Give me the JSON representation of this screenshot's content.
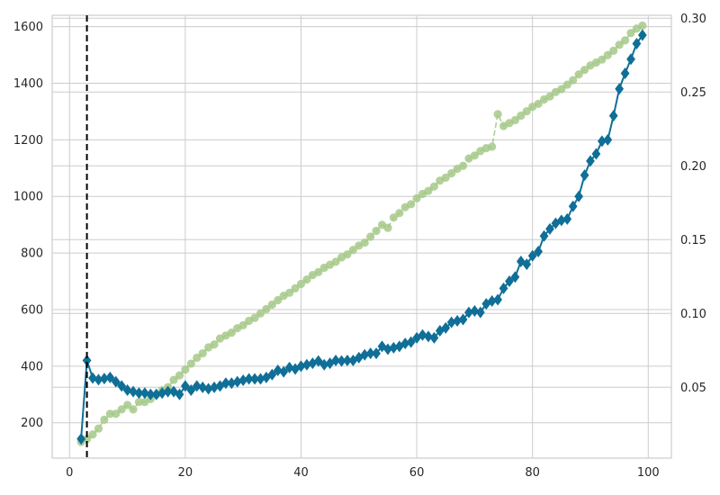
{
  "chart_data": {
    "type": "line",
    "title": "",
    "xlabel": "",
    "ylabel_left": "",
    "ylabel_right": "",
    "xlim": [
      -3,
      104
    ],
    "ylim_left": [
      75,
      1640
    ],
    "ylim_right": [
      0.002,
      0.302
    ],
    "grid": true,
    "x_ticks": [
      0,
      20,
      40,
      60,
      80,
      100
    ],
    "y_ticks_left": [
      200,
      400,
      600,
      800,
      1000,
      1200,
      1400,
      1600
    ],
    "y_ticks_right": [
      0.05,
      0.1,
      0.15,
      0.2,
      0.25,
      0.3
    ],
    "marker_line_x": 3,
    "x": [
      2,
      3,
      4,
      5,
      6,
      7,
      8,
      9,
      10,
      11,
      12,
      13,
      14,
      15,
      16,
      17,
      18,
      19,
      20,
      21,
      22,
      23,
      24,
      25,
      26,
      27,
      28,
      29,
      30,
      31,
      32,
      33,
      34,
      35,
      36,
      37,
      38,
      39,
      40,
      41,
      42,
      43,
      44,
      45,
      46,
      47,
      48,
      49,
      50,
      51,
      52,
      53,
      54,
      55,
      56,
      57,
      58,
      59,
      60,
      61,
      62,
      63,
      64,
      65,
      66,
      67,
      68,
      69,
      70,
      71,
      72,
      73,
      74,
      75,
      76,
      77,
      78,
      79,
      80,
      81,
      82,
      83,
      84,
      85,
      86,
      87,
      88,
      89,
      90,
      91,
      92,
      93,
      94,
      95,
      96,
      97,
      98,
      99
    ],
    "series": [
      {
        "axis": "left",
        "color": "#0f6f97",
        "marker": "diamond",
        "values": [
          143,
          420,
          358,
          352,
          356,
          360,
          345,
          330,
          315,
          310,
          305,
          305,
          300,
          300,
          305,
          310,
          310,
          300,
          330,
          315,
          330,
          325,
          320,
          325,
          330,
          340,
          340,
          345,
          350,
          355,
          355,
          355,
          360,
          370,
          385,
          380,
          395,
          390,
          400,
          405,
          410,
          418,
          405,
          410,
          420,
          418,
          420,
          420,
          430,
          440,
          445,
          445,
          470,
          460,
          465,
          470,
          480,
          485,
          500,
          510,
          505,
          500,
          525,
          535,
          555,
          560,
          565,
          590,
          595,
          590,
          620,
          630,
          635,
          675,
          700,
          715,
          770,
          760,
          790,
          805,
          860,
          885,
          905,
          915,
          920,
          965,
          1000,
          1075,
          1125,
          1150,
          1195,
          1200,
          1285,
          1380,
          1435,
          1485,
          1540,
          1570
        ]
      },
      {
        "axis": "right",
        "color": "#a6c98a",
        "marker": "circle",
        "values": [
          0.013,
          0.015,
          0.018,
          0.022,
          0.028,
          0.032,
          0.032,
          0.035,
          0.038,
          0.035,
          0.04,
          0.04,
          0.042,
          0.045,
          0.048,
          0.05,
          0.055,
          0.058,
          0.062,
          0.066,
          0.07,
          0.073,
          0.077,
          0.079,
          0.083,
          0.085,
          0.087,
          0.09,
          0.092,
          0.095,
          0.097,
          0.1,
          0.103,
          0.106,
          0.109,
          0.112,
          0.114,
          0.117,
          0.12,
          0.123,
          0.126,
          0.128,
          0.131,
          0.133,
          0.135,
          0.138,
          0.14,
          0.143,
          0.146,
          0.148,
          0.152,
          0.156,
          0.16,
          0.158,
          0.165,
          0.168,
          0.172,
          0.174,
          0.178,
          0.181,
          0.183,
          0.186,
          0.19,
          0.192,
          0.195,
          0.198,
          0.2,
          0.205,
          0.207,
          0.21,
          0.212,
          0.213,
          0.235,
          0.227,
          0.229,
          0.231,
          0.234,
          0.237,
          0.24,
          0.242,
          0.245,
          0.247,
          0.25,
          0.252,
          0.255,
          0.258,
          0.262,
          0.265,
          0.268,
          0.27,
          0.272,
          0.275,
          0.278,
          0.282,
          0.285,
          0.29,
          0.293,
          0.295
        ]
      }
    ]
  }
}
